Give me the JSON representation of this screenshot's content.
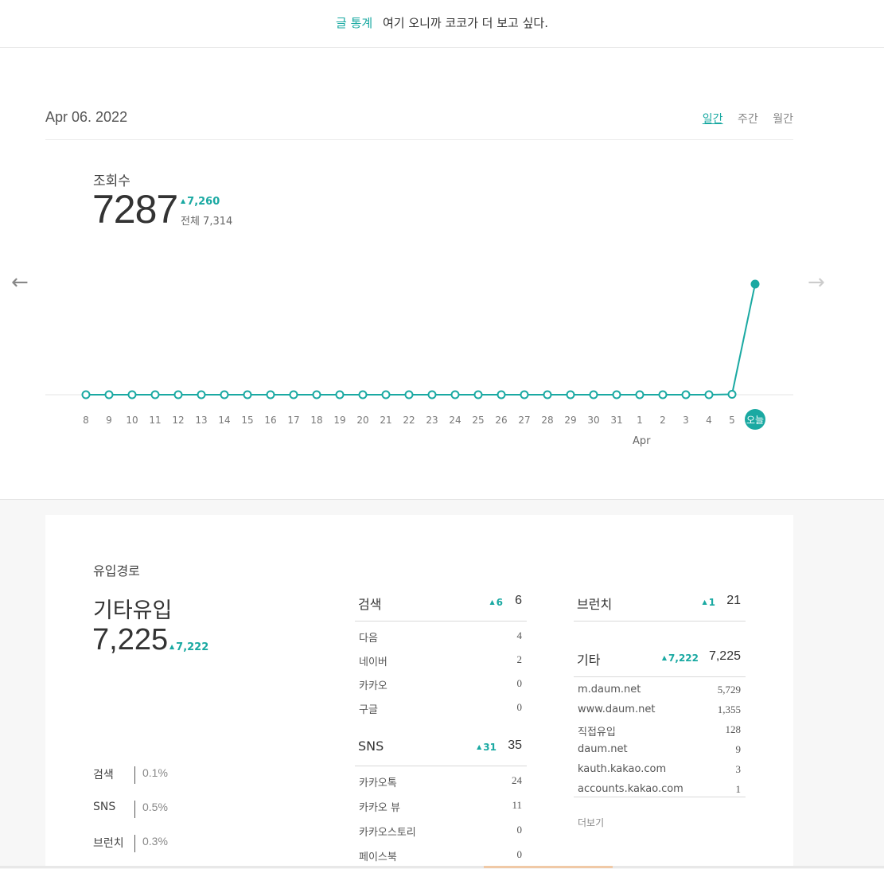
{
  "header": {
    "accent": "글 통계",
    "message": "여기 오니까 코코가 더 보고 싶다."
  },
  "date": "Apr 06. 2022",
  "period_tabs": [
    {
      "label": "일간",
      "active": true
    },
    {
      "label": "주간",
      "active": false
    },
    {
      "label": "월간",
      "active": false
    }
  ],
  "views": {
    "label": "조회수",
    "value": "7287",
    "delta": "7,260",
    "total": "전체 7,314"
  },
  "nav": {
    "prev_icon": "arrow-left-icon",
    "next_icon": "arrow-right-icon"
  },
  "chart_data": {
    "type": "line",
    "categories": [
      "8",
      "9",
      "10",
      "11",
      "12",
      "13",
      "14",
      "15",
      "16",
      "17",
      "18",
      "19",
      "20",
      "21",
      "22",
      "23",
      "24",
      "25",
      "26",
      "27",
      "28",
      "29",
      "30",
      "31",
      "1",
      "2",
      "3",
      "4",
      "5",
      "오늘"
    ],
    "series": [
      {
        "values": [
          0,
          0,
          0,
          0,
          0,
          0,
          0,
          0,
          0,
          0,
          0,
          0,
          0,
          0,
          0,
          0,
          0,
          0,
          0,
          0,
          0,
          0,
          0,
          0,
          0,
          0,
          0,
          0,
          27,
          7287
        ]
      }
    ],
    "month_label": "Apr",
    "accent_color": "#1aa9a2"
  },
  "referrer": {
    "title": "유입경로",
    "top": {
      "label": "기타유입",
      "value": "7,225",
      "delta": "7,222"
    },
    "shares": [
      {
        "label": "검색",
        "pct": "0.1%"
      },
      {
        "label": "SNS",
        "pct": "0.5%"
      },
      {
        "label": "브런치",
        "pct": "0.3%"
      }
    ],
    "search": {
      "name": "검색",
      "delta": "6",
      "value": "6",
      "rows": [
        {
          "label": "다음",
          "value": "4"
        },
        {
          "label": "네이버",
          "value": "2"
        },
        {
          "label": "카카오",
          "value": "0"
        },
        {
          "label": "구글",
          "value": "0"
        }
      ]
    },
    "sns": {
      "name": "SNS",
      "delta": "31",
      "value": "35",
      "rows": [
        {
          "label": "카카오톡",
          "value": "24"
        },
        {
          "label": "카카오 뷰",
          "value": "11"
        },
        {
          "label": "카카오스토리",
          "value": "0"
        },
        {
          "label": "페이스북",
          "value": "0"
        }
      ]
    },
    "brunch": {
      "name": "브런치",
      "delta": "1",
      "value": "21"
    },
    "etc": {
      "name": "기타",
      "delta": "7,222",
      "value": "7,225",
      "rows": [
        {
          "label": "m.daum.net",
          "value": "5,729"
        },
        {
          "label": "www.daum.net",
          "value": "1,355"
        },
        {
          "label": "직접유입",
          "value": "128"
        },
        {
          "label": "daum.net",
          "value": "9"
        },
        {
          "label": "kauth.kakao.com",
          "value": "3"
        },
        {
          "label": "accounts.kakao.com",
          "value": "1"
        }
      ]
    },
    "more_label": "더보기"
  }
}
